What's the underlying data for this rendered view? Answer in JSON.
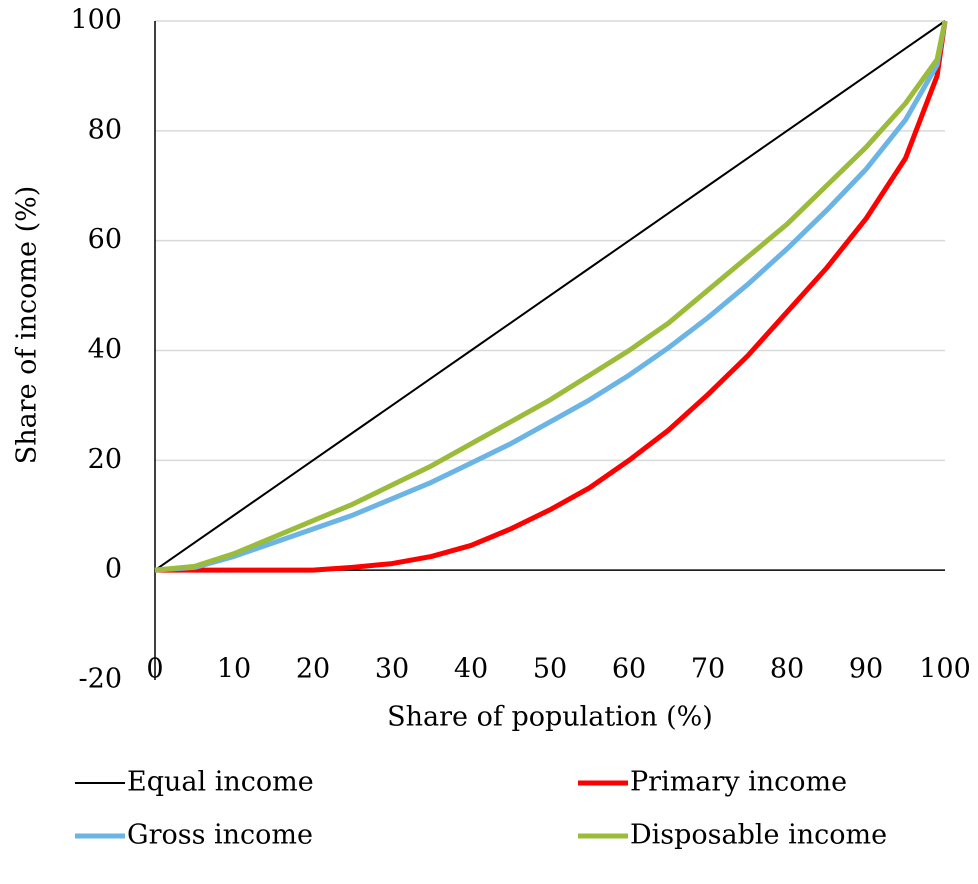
{
  "chart_data": {
    "type": "line",
    "x_label": "Share of population (%)",
    "y_label": "Share of income (%)",
    "x": [
      0,
      5,
      10,
      15,
      20,
      25,
      30,
      35,
      40,
      45,
      50,
      55,
      60,
      65,
      70,
      75,
      80,
      85,
      90,
      95,
      99,
      100
    ],
    "series": [
      {
        "name": "Equal income",
        "color": "#000000",
        "values": [
          0,
          5,
          10,
          15,
          20,
          25,
          30,
          35,
          40,
          45,
          50,
          55,
          60,
          65,
          70,
          75,
          80,
          85,
          90,
          95,
          99,
          100
        ]
      },
      {
        "name": "Primary income",
        "color": "#ff0000",
        "values": [
          0,
          0,
          0,
          0,
          0,
          0.5,
          1.2,
          2.5,
          4.5,
          7.5,
          11,
          15,
          20,
          25.5,
          32,
          39,
          47,
          55,
          64,
          75,
          90,
          100
        ]
      },
      {
        "name": "Gross income",
        "color": "#6ab4e6",
        "values": [
          0,
          0.5,
          2.5,
          5,
          7.5,
          10,
          13,
          16,
          19.5,
          23,
          27,
          31,
          35.5,
          40.5,
          46,
          52,
          58.5,
          65.5,
          73,
          82,
          92,
          100
        ]
      },
      {
        "name": "Disposable income",
        "color": "#9bbb3b",
        "values": [
          0,
          0.7,
          3,
          6,
          9,
          12,
          15.5,
          19,
          23,
          27,
          31,
          35.5,
          40,
          45,
          51,
          57,
          63,
          70,
          77,
          85,
          93,
          100
        ]
      }
    ],
    "xlim": [
      0,
      100
    ],
    "xticks": [
      0,
      10,
      20,
      30,
      40,
      50,
      60,
      70,
      80,
      90,
      100
    ],
    "ylim": [
      -20,
      100
    ],
    "yticks": [
      -20,
      0,
      20,
      40,
      60,
      80,
      100
    ],
    "grid": true,
    "legend": "bottom"
  }
}
